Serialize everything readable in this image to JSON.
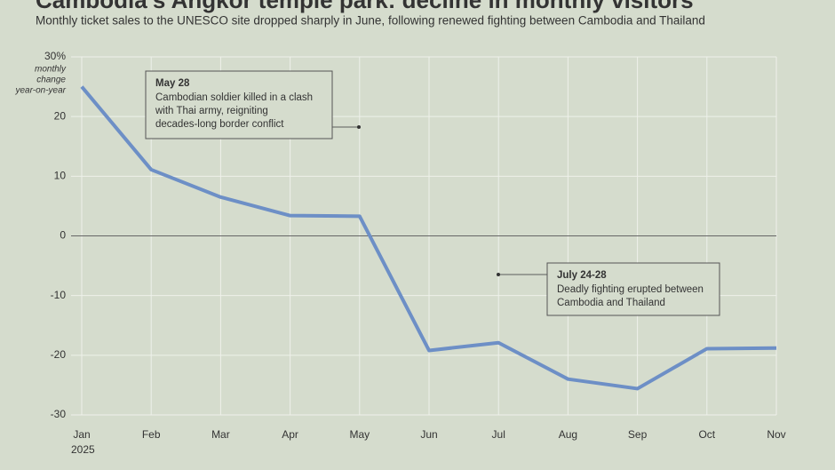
{
  "chart_data": {
    "type": "line",
    "title": "Cambodia's Angkor temple park: decline in monthly visitors",
    "subtitle": "Monthly ticket sales to the UNESCO site dropped sharply in June, following renewed fighting between Cambodia and Thailand",
    "y_label": [
      "monthly",
      "change",
      "year-on-year"
    ],
    "categories": [
      "Jan",
      "Feb",
      "Mar",
      "Apr",
      "May",
      "Jun",
      "Jul",
      "Aug",
      "Sep",
      "Oct",
      "Nov"
    ],
    "year_label": "2025",
    "series": [
      {
        "color": "#6d8fc6",
        "values": [
          25.0,
          11.1,
          6.5,
          3.4,
          3.3,
          -19.2,
          -17.9,
          -24.0,
          -25.6,
          -18.9,
          -18.8
        ]
      }
    ],
    "ylim": [
      -30,
      30
    ],
    "yticks": [
      -30,
      -20,
      -10,
      0,
      10,
      20,
      {
        "value": 30,
        "label": "30%"
      }
    ],
    "grid": true,
    "annotations": [
      {
        "title": "May 28",
        "lines": [
          "Cambodian soldier killed in a clash",
          "with Thai army, reigniting",
          "decades-long border conflict"
        ]
      },
      {
        "title": "July 24-28",
        "lines": [
          "Deadly fighting erupted between",
          "Cambodia and Thailand"
        ]
      }
    ]
  }
}
